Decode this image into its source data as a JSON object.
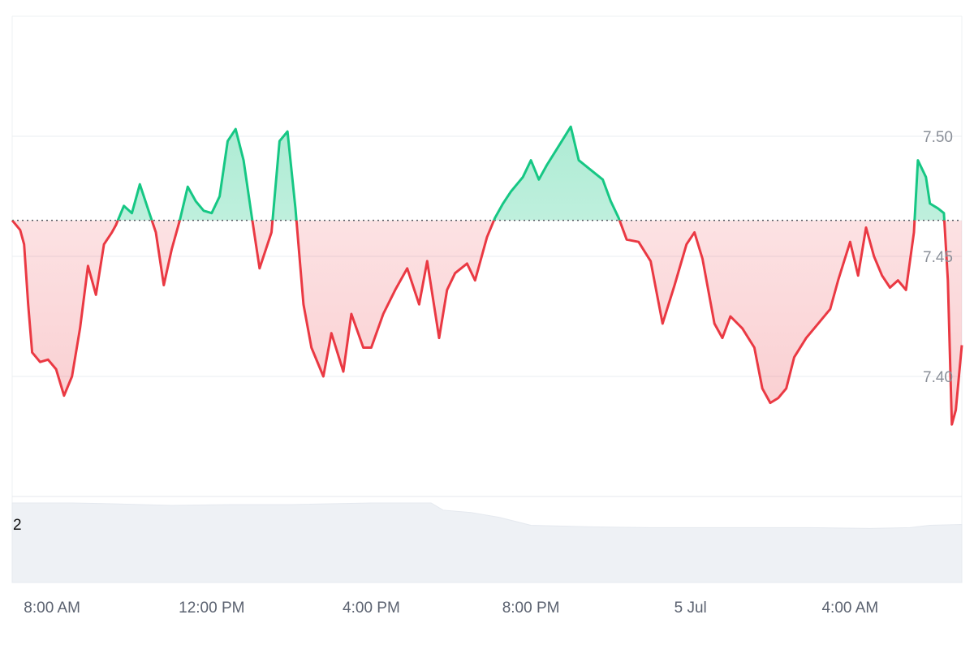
{
  "chart_data": {
    "type": "area",
    "baseline": 7.465,
    "ylim": [
      7.35,
      7.55
    ],
    "y_ticks": [
      {
        "value": 7.5,
        "label": "7.50"
      },
      {
        "value": 7.45,
        "label": "7.45"
      },
      {
        "value": 7.4,
        "label": "7.40"
      }
    ],
    "x_ticks": [
      {
        "hour": 2,
        "label": "8:00 AM"
      },
      {
        "hour": 6,
        "label": "12:00 PM"
      },
      {
        "hour": 10,
        "label": "4:00 PM"
      },
      {
        "hour": 14,
        "label": "8:00 PM"
      },
      {
        "hour": 18,
        "label": "5 Jul"
      },
      {
        "hour": 22,
        "label": "4:00 AM"
      }
    ],
    "x_range_hours": [
      1.0,
      24.8
    ],
    "colors": {
      "up": "#16c784",
      "down": "#ea3943",
      "grid": "#e9ecf0",
      "volume": "#eef1f5",
      "baseline": "#555a63"
    },
    "volume_label": "2",
    "price_series": [
      [
        1.0,
        7.465
      ],
      [
        1.2,
        7.461
      ],
      [
        1.3,
        7.455
      ],
      [
        1.4,
        7.43
      ],
      [
        1.5,
        7.41
      ],
      [
        1.7,
        7.406
      ],
      [
        1.9,
        7.407
      ],
      [
        2.1,
        7.403
      ],
      [
        2.3,
        7.392
      ],
      [
        2.5,
        7.4
      ],
      [
        2.7,
        7.42
      ],
      [
        2.9,
        7.446
      ],
      [
        3.1,
        7.434
      ],
      [
        3.3,
        7.455
      ],
      [
        3.5,
        7.46
      ],
      [
        3.6,
        7.463
      ],
      [
        3.8,
        7.471
      ],
      [
        4.0,
        7.468
      ],
      [
        4.2,
        7.48
      ],
      [
        4.4,
        7.47
      ],
      [
        4.6,
        7.46
      ],
      [
        4.8,
        7.438
      ],
      [
        5.0,
        7.453
      ],
      [
        5.2,
        7.465
      ],
      [
        5.4,
        7.479
      ],
      [
        5.6,
        7.473
      ],
      [
        5.8,
        7.469
      ],
      [
        6.0,
        7.468
      ],
      [
        6.2,
        7.475
      ],
      [
        6.4,
        7.498
      ],
      [
        6.6,
        7.503
      ],
      [
        6.8,
        7.49
      ],
      [
        7.0,
        7.467
      ],
      [
        7.2,
        7.445
      ],
      [
        7.5,
        7.46
      ],
      [
        7.7,
        7.498
      ],
      [
        7.9,
        7.502
      ],
      [
        8.1,
        7.47
      ],
      [
        8.3,
        7.43
      ],
      [
        8.5,
        7.412
      ],
      [
        8.8,
        7.4
      ],
      [
        9.0,
        7.418
      ],
      [
        9.3,
        7.402
      ],
      [
        9.5,
        7.426
      ],
      [
        9.8,
        7.412
      ],
      [
        10.0,
        7.412
      ],
      [
        10.3,
        7.426
      ],
      [
        10.6,
        7.436
      ],
      [
        10.9,
        7.445
      ],
      [
        11.2,
        7.43
      ],
      [
        11.4,
        7.448
      ],
      [
        11.7,
        7.416
      ],
      [
        11.9,
        7.436
      ],
      [
        12.1,
        7.443
      ],
      [
        12.4,
        7.447
      ],
      [
        12.6,
        7.44
      ],
      [
        12.9,
        7.458
      ],
      [
        13.1,
        7.466
      ],
      [
        13.3,
        7.472
      ],
      [
        13.5,
        7.477
      ],
      [
        13.8,
        7.483
      ],
      [
        14.0,
        7.49
      ],
      [
        14.2,
        7.482
      ],
      [
        14.4,
        7.488
      ],
      [
        14.7,
        7.496
      ],
      [
        15.0,
        7.504
      ],
      [
        15.2,
        7.49
      ],
      [
        15.5,
        7.486
      ],
      [
        15.8,
        7.482
      ],
      [
        16.0,
        7.473
      ],
      [
        16.2,
        7.466
      ],
      [
        16.4,
        7.457
      ],
      [
        16.7,
        7.456
      ],
      [
        17.0,
        7.448
      ],
      [
        17.3,
        7.422
      ],
      [
        17.6,
        7.438
      ],
      [
        17.9,
        7.455
      ],
      [
        18.1,
        7.46
      ],
      [
        18.3,
        7.449
      ],
      [
        18.6,
        7.422
      ],
      [
        18.8,
        7.416
      ],
      [
        19.0,
        7.425
      ],
      [
        19.3,
        7.42
      ],
      [
        19.6,
        7.412
      ],
      [
        19.8,
        7.395
      ],
      [
        20.0,
        7.389
      ],
      [
        20.2,
        7.391
      ],
      [
        20.4,
        7.395
      ],
      [
        20.6,
        7.408
      ],
      [
        20.9,
        7.416
      ],
      [
        21.2,
        7.422
      ],
      [
        21.5,
        7.428
      ],
      [
        21.7,
        7.44
      ],
      [
        22.0,
        7.456
      ],
      [
        22.2,
        7.442
      ],
      [
        22.4,
        7.462
      ],
      [
        22.6,
        7.45
      ],
      [
        22.8,
        7.442
      ],
      [
        23.0,
        7.437
      ],
      [
        23.2,
        7.44
      ],
      [
        23.4,
        7.436
      ],
      [
        23.6,
        7.46
      ],
      [
        23.7,
        7.49
      ],
      [
        23.9,
        7.483
      ],
      [
        24.0,
        7.472
      ],
      [
        24.2,
        7.47
      ],
      [
        24.35,
        7.468
      ],
      [
        24.45,
        7.44
      ],
      [
        24.55,
        7.38
      ],
      [
        24.65,
        7.386
      ],
      [
        24.8,
        7.413
      ]
    ],
    "volume_series": [
      [
        1.0,
        1.0
      ],
      [
        2.5,
        1.0
      ],
      [
        3.5,
        0.99
      ],
      [
        5.0,
        0.97
      ],
      [
        6.5,
        0.98
      ],
      [
        8.0,
        0.98
      ],
      [
        10.0,
        1.0
      ],
      [
        11.5,
        1.0
      ],
      [
        11.8,
        0.91
      ],
      [
        12.5,
        0.88
      ],
      [
        13.2,
        0.82
      ],
      [
        14.0,
        0.72
      ],
      [
        15.5,
        0.7
      ],
      [
        17.0,
        0.69
      ],
      [
        19.0,
        0.69
      ],
      [
        21.0,
        0.69
      ],
      [
        22.5,
        0.68
      ],
      [
        23.5,
        0.69
      ],
      [
        24.0,
        0.72
      ],
      [
        24.8,
        0.73
      ]
    ]
  }
}
